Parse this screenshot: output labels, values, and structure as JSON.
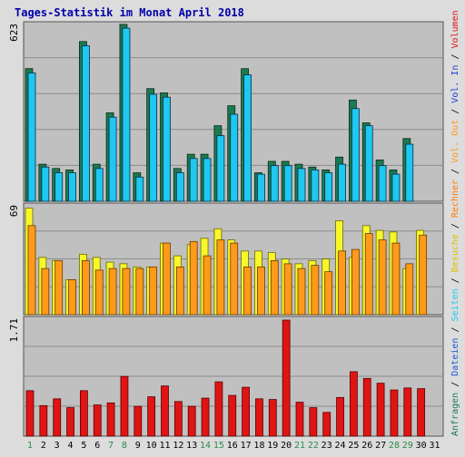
{
  "colors": {
    "background": "#dcdcdc",
    "plot_background": "#c0c0c0",
    "frame": "#555555",
    "gridline": "#8c8c8c",
    "title": "#0000aa",
    "weekday_label": "#000000",
    "weekend_label": "#2a8a4a",
    "anfragen": "#1b7a4f",
    "dateien": "#1ec8f0",
    "seiten": "#1ec8f0",
    "besuche": "#f7f72a",
    "rechner": "#ff9a1a",
    "vol": "#e01414"
  },
  "chart_data": {
    "type": "bar",
    "title": "Tages-Statistik im Monat April 2018",
    "categories": [
      "1",
      "2",
      "3",
      "4",
      "5",
      "6",
      "7",
      "8",
      "9",
      "10",
      "11",
      "12",
      "13",
      "14",
      "15",
      "16",
      "17",
      "18",
      "19",
      "20",
      "21",
      "22",
      "23",
      "24",
      "25",
      "26",
      "27",
      "28",
      "29",
      "30",
      "31"
    ],
    "weekend_days": [
      "1",
      "7",
      "8",
      "14",
      "15",
      "21",
      "22",
      "28",
      "29"
    ],
    "panels": [
      {
        "id": "top",
        "ymax_label": "623",
        "ylim": [
          0,
          623
        ],
        "series": [
          {
            "name": "Anfragen",
            "values": [
              465,
              130,
              115,
              110,
              560,
              130,
              310,
              620,
              100,
              395,
              380,
              115,
              165,
              165,
              265,
              335,
              465,
              100,
              140,
              140,
              130,
              120,
              110,
              155,
              355,
              275,
              145,
              110,
              220,
              0,
              0
            ]
          },
          {
            "name": "Dateien",
            "values": [
              450,
              120,
              100,
              100,
              545,
              115,
              295,
              607,
              85,
              375,
              365,
              100,
              150,
              150,
              230,
              305,
              443,
              95,
              125,
              125,
              115,
              110,
              100,
              130,
              325,
              265,
              125,
              95,
              200,
              0,
              0
            ]
          },
          {
            "name": "Seiten",
            "values": [
              450,
              120,
              100,
              100,
              545,
              115,
              295,
              607,
              85,
              375,
              365,
              100,
              150,
              150,
              230,
              305,
              443,
              95,
              125,
              125,
              115,
              110,
              100,
              130,
              325,
              265,
              125,
              95,
              200,
              0,
              0
            ]
          }
        ]
      },
      {
        "id": "mid",
        "ymax_label": "69",
        "ylim": [
          0,
          69
        ],
        "series": [
          {
            "name": "Besuche",
            "values": [
              67,
              36,
              34,
              22,
              38,
              36,
              33,
              32,
              30,
              30,
              45,
              37,
              44,
              48,
              54,
              47,
              40,
              40,
              39,
              35,
              32,
              34,
              35,
              59,
              36,
              56,
              53,
              52,
              29,
              53,
              0
            ]
          },
          {
            "name": "Rechner",
            "values": [
              56,
              29,
              34,
              22,
              34,
              28,
              29,
              29,
              29,
              30,
              45,
              30,
              46,
              37,
              47,
              45,
              30,
              30,
              34,
              32,
              29,
              31,
              27,
              40,
              41,
              51,
              47,
              45,
              32,
              50,
              0
            ]
          }
        ]
      },
      {
        "id": "bottom",
        "ymax_label": "1.71",
        "ylim": [
          0,
          1.71
        ],
        "series": [
          {
            "name": "Volumen",
            "values": [
              0.67,
              0.45,
              0.55,
              0.42,
              0.67,
              0.46,
              0.49,
              0.88,
              0.44,
              0.58,
              0.74,
              0.51,
              0.44,
              0.56,
              0.8,
              0.6,
              0.72,
              0.55,
              0.54,
              1.71,
              0.5,
              0.42,
              0.35,
              0.57,
              0.95,
              0.85,
              0.78,
              0.68,
              0.71,
              0.7,
              0
            ]
          }
        ]
      }
    ],
    "right_legend": [
      {
        "text": "Anfragen",
        "color": "#1b7a4f"
      },
      {
        "text": "/",
        "color": "#000000"
      },
      {
        "text": "Dateien",
        "color": "#1a5ad0"
      },
      {
        "text": "/",
        "color": "#000000"
      },
      {
        "text": "Seiten",
        "color": "#1ec8f0"
      },
      {
        "text": "/",
        "color": "#000000"
      },
      {
        "text": "Besuche",
        "color": "#d8c400"
      },
      {
        "text": "/",
        "color": "#000000"
      },
      {
        "text": "Rechner",
        "color": "#ff7a00"
      },
      {
        "text": "/",
        "color": "#000000"
      },
      {
        "text": "Vol. Out",
        "color": "#ff9a1a"
      },
      {
        "text": "/",
        "color": "#000000"
      },
      {
        "text": "Vol. In",
        "color": "#2040d0"
      },
      {
        "text": "/",
        "color": "#000000"
      },
      {
        "text": "Volumen",
        "color": "#e01414"
      }
    ]
  }
}
